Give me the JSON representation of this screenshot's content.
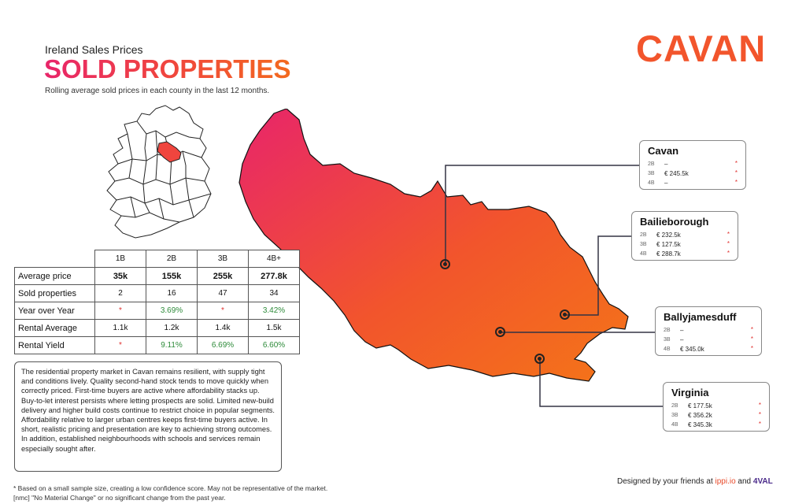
{
  "header": {
    "overline": "Ireland Sales Prices",
    "title": "SOLD PROPERTIES",
    "caption": "Rolling average sold prices in each county in the last 12 months."
  },
  "county": "CAVAN",
  "table": {
    "headers": [
      "1B",
      "2B",
      "3B",
      "4B+"
    ],
    "rows": [
      {
        "label": "Average price",
        "values": [
          "35k",
          "155k",
          "255k",
          "277.8k"
        ]
      },
      {
        "label": "Sold properties",
        "values": [
          "2",
          "16",
          "47",
          "34"
        ]
      },
      {
        "label": "Year over Year",
        "values": [
          "*",
          "3.69%",
          "*",
          "3.42%"
        ]
      },
      {
        "label": "Rental Average",
        "values": [
          "1.1k",
          "1.2k",
          "1.4k",
          "1.5k"
        ]
      },
      {
        "label": "Rental Yield",
        "values": [
          "*",
          "9.11%",
          "6.69%",
          "6.60%"
        ]
      }
    ]
  },
  "description": "The residential property market in Cavan remains resilient, with supply tight and conditions lively. Quality second-hand stock tends to move quickly when correctly priced. First-time buyers are active where affordability stacks up. Buy-to-let interest persists where letting prospects are solid. Limited new-build delivery and higher build costs continue to restrict choice in popular segments. Affordability relative to larger urban centres keeps first-time buyers active. In short, realistic pricing and presentation are key to achieving strong outcomes. In addition, established neighbourhoods with schools and services remain especially sought after.",
  "towns": [
    {
      "name": "Cavan",
      "rows": [
        {
          "bed": "2B",
          "price": "–",
          "mark": "*"
        },
        {
          "bed": "3B",
          "price": "€ 245.5k",
          "mark": "*"
        },
        {
          "bed": "4B",
          "price": "–",
          "mark": "*"
        }
      ]
    },
    {
      "name": "Bailieborough",
      "rows": [
        {
          "bed": "2B",
          "price": "€ 232.5k",
          "mark": "*"
        },
        {
          "bed": "3B",
          "price": "€ 127.5k",
          "mark": "*"
        },
        {
          "bed": "4B",
          "price": "€ 288.7k",
          "mark": "*"
        }
      ]
    },
    {
      "name": "Ballyjamesduff",
      "rows": [
        {
          "bed": "2B",
          "price": "–",
          "mark": "*"
        },
        {
          "bed": "3B",
          "price": "–",
          "mark": "*"
        },
        {
          "bed": "4B",
          "price": "€ 345.0k",
          "mark": "*"
        }
      ]
    },
    {
      "name": "Virginia",
      "rows": [
        {
          "bed": "2B",
          "price": "€ 177.5k",
          "mark": "*"
        },
        {
          "bed": "3B",
          "price": "€ 356.2k",
          "mark": "*"
        },
        {
          "bed": "4B",
          "price": "€ 345.3k",
          "mark": "*"
        }
      ]
    }
  ],
  "footnotes": {
    "line1": "* Based on a small sample size, creating a low confidence score. May not be representative of the market.",
    "line2": "[nmc] \"No Material Change\" or no significant change from the past year."
  },
  "credit": {
    "prefix": "Designed by your friends at ",
    "brand1": "ippi.io",
    "middle": " and ",
    "brand2": "4VAL"
  },
  "colors": {
    "gradient_start": "#e8256a",
    "gradient_end": "#f36a1e",
    "accent": "#f2552c",
    "positive": "#2e8b3a",
    "warning": "#e0302e"
  },
  "icons": [
    "ireland-locator-map",
    "county-map",
    "location-marker-icon"
  ]
}
